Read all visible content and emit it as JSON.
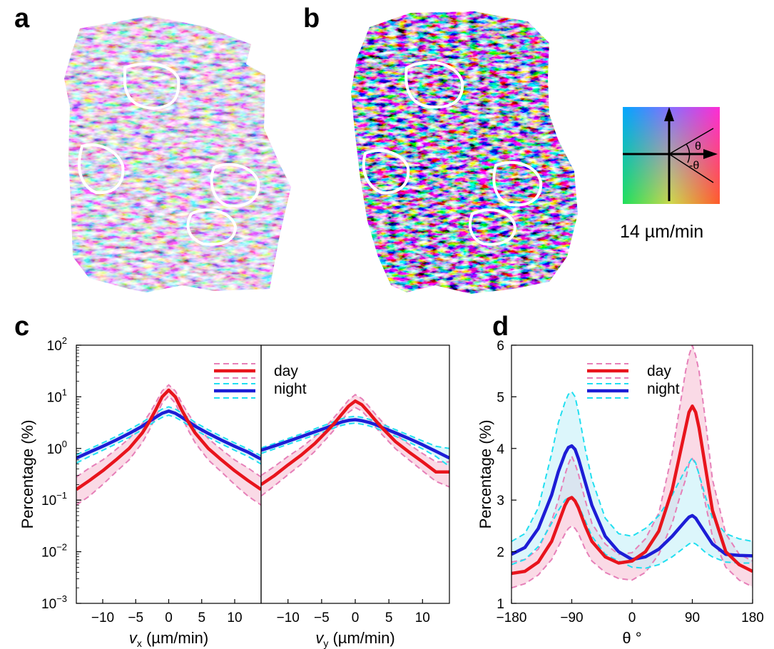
{
  "panels": {
    "a": "a",
    "b": "b",
    "c": "c",
    "d": "d"
  },
  "colorwheel": {
    "theta": "θ",
    "neg_theta": "-θ",
    "scale_label": "14 µm/min"
  },
  "colors": {
    "day": "#e8141c",
    "day_dash": "#e67fb8",
    "day_fill": "#f7c6d8",
    "night": "#1d1dd6",
    "night_dash": "#21dff0",
    "night_fill": "#bfeff7"
  },
  "chart_data": [
    {
      "type": "line",
      "panel": "c-left",
      "yscale": "log",
      "ylabel": "Percentage (%)",
      "xlabel_var": "v",
      "xlabel_sub": "x",
      "xlabel_unit": " (µm/min)",
      "xlim": [
        -14,
        14
      ],
      "ylim": [
        0.001,
        100
      ],
      "xticks": [
        -10,
        -5,
        0,
        5,
        10
      ],
      "xtick_labels": [
        "−10",
        "−5",
        "0",
        "5",
        "10"
      ],
      "yticks": [
        0.001,
        0.01,
        0.1,
        1,
        10,
        100
      ],
      "ytick_base": [
        "10",
        "10",
        "10",
        "10",
        "10",
        "10"
      ],
      "ytick_exp": [
        "−3",
        "−2",
        "−1",
        "0",
        "1",
        "2"
      ],
      "legend": [
        "day",
        "night"
      ],
      "legend_position": "top-right",
      "x": [
        -14,
        -12,
        -10,
        -8,
        -6,
        -4,
        -3,
        -2,
        -1,
        0,
        1,
        2,
        3,
        4,
        6,
        8,
        10,
        12,
        14
      ],
      "series": [
        {
          "name": "day",
          "values": [
            0.16,
            0.24,
            0.37,
            0.6,
            1.0,
            2.0,
            3.2,
            5.5,
            10.0,
            13.5,
            10.0,
            5.5,
            3.2,
            2.0,
            1.0,
            0.6,
            0.37,
            0.24,
            0.16
          ],
          "upper": [
            0.28,
            0.42,
            0.6,
            0.95,
            1.55,
            3.0,
            4.6,
            7.5,
            13.0,
            17.0,
            13.0,
            7.5,
            4.6,
            3.0,
            1.55,
            0.95,
            0.6,
            0.42,
            0.28
          ],
          "lower": [
            0.08,
            0.12,
            0.2,
            0.35,
            0.6,
            1.3,
            2.2,
            4.0,
            7.5,
            10.5,
            7.5,
            4.0,
            2.2,
            1.3,
            0.6,
            0.35,
            0.2,
            0.12,
            0.08
          ]
        },
        {
          "name": "night",
          "values": [
            0.65,
            0.85,
            1.1,
            1.45,
            1.95,
            2.7,
            3.3,
            4.0,
            4.8,
            5.3,
            4.8,
            4.0,
            3.3,
            2.7,
            1.95,
            1.45,
            1.1,
            0.85,
            0.62
          ],
          "upper": [
            0.75,
            0.98,
            1.28,
            1.7,
            2.3,
            3.2,
            3.9,
            4.8,
            5.8,
            6.4,
            5.8,
            4.8,
            3.9,
            3.2,
            2.3,
            1.7,
            1.28,
            0.98,
            0.72
          ],
          "lower": [
            0.52,
            0.7,
            0.92,
            1.22,
            1.65,
            2.3,
            2.8,
            3.4,
            4.0,
            4.4,
            4.0,
            3.4,
            2.8,
            2.3,
            1.65,
            1.22,
            0.92,
            0.7,
            0.5
          ]
        }
      ]
    },
    {
      "type": "line",
      "panel": "c-right",
      "yscale": "log",
      "xlabel_var": "v",
      "xlabel_sub": "y",
      "xlabel_unit": " (µm/min)",
      "xlim": [
        -14,
        14
      ],
      "ylim": [
        0.001,
        100
      ],
      "xticks": [
        -10,
        -5,
        0,
        5,
        10
      ],
      "xtick_labels": [
        "−10",
        "−5",
        "0",
        "5",
        "10"
      ],
      "x": [
        -14,
        -12,
        -10,
        -8,
        -6,
        -4,
        -3,
        -2,
        -1,
        0,
        1,
        2,
        3,
        4,
        6,
        8,
        10,
        12,
        14
      ],
      "series": [
        {
          "name": "day",
          "values": [
            0.2,
            0.3,
            0.48,
            0.75,
            1.25,
            2.3,
            3.2,
            4.6,
            6.6,
            8.3,
            7.0,
            5.0,
            3.5,
            2.5,
            1.35,
            0.85,
            0.55,
            0.35,
            0.35
          ],
          "upper": [
            0.3,
            0.45,
            0.7,
            1.05,
            1.7,
            3.0,
            4.2,
            6.0,
            8.6,
            11.0,
            9.2,
            6.6,
            4.6,
            3.3,
            1.85,
            1.2,
            0.8,
            0.55,
            0.55
          ],
          "lower": [
            0.12,
            0.19,
            0.31,
            0.5,
            0.88,
            1.7,
            2.4,
            3.5,
            5.0,
            6.2,
            5.3,
            3.8,
            2.6,
            1.85,
            0.98,
            0.6,
            0.37,
            0.23,
            0.18
          ]
        },
        {
          "name": "night",
          "values": [
            0.92,
            1.12,
            1.38,
            1.7,
            2.1,
            2.6,
            2.95,
            3.25,
            3.5,
            3.6,
            3.45,
            3.2,
            2.9,
            2.55,
            2.0,
            1.55,
            1.18,
            0.88,
            0.65
          ],
          "upper": [
            1.02,
            1.25,
            1.55,
            1.92,
            2.4,
            3.0,
            3.4,
            3.75,
            4.05,
            4.2,
            4.0,
            3.7,
            3.35,
            2.95,
            2.3,
            1.8,
            1.4,
            1.1,
            1.0
          ],
          "lower": [
            0.8,
            0.98,
            1.2,
            1.48,
            1.82,
            2.25,
            2.55,
            2.8,
            3.0,
            3.1,
            2.95,
            2.75,
            2.5,
            2.2,
            1.72,
            1.32,
            0.98,
            0.7,
            0.45
          ]
        }
      ]
    },
    {
      "type": "line",
      "panel": "d",
      "ylabel": "Percentage (%)",
      "xlabel": "θ °",
      "xlim": [
        -180,
        180
      ],
      "ylim": [
        1,
        6
      ],
      "xticks": [
        -180,
        -90,
        0,
        90,
        180
      ],
      "xtick_labels": [
        "−180",
        "−90",
        "0",
        "90",
        "180"
      ],
      "yticks": [
        1,
        2,
        3,
        4,
        5,
        6
      ],
      "ytick_labels": [
        "1",
        "2",
        "3",
        "4",
        "5",
        "6"
      ],
      "legend": [
        "day",
        "night"
      ],
      "legend_position": "top",
      "x": [
        -180,
        -160,
        -140,
        -120,
        -110,
        -100,
        -95,
        -90,
        -85,
        -80,
        -70,
        -60,
        -40,
        -20,
        0,
        20,
        40,
        60,
        70,
        80,
        85,
        90,
        95,
        100,
        110,
        120,
        140,
        160,
        180
      ],
      "series": [
        {
          "name": "day",
          "values": [
            1.58,
            1.62,
            1.8,
            2.2,
            2.55,
            2.9,
            3.02,
            3.05,
            2.98,
            2.85,
            2.5,
            2.2,
            1.9,
            1.78,
            1.82,
            2.0,
            2.4,
            3.2,
            3.8,
            4.4,
            4.7,
            4.82,
            4.7,
            4.4,
            3.6,
            2.8,
            2.0,
            1.75,
            1.62
          ],
          "upper": [
            1.8,
            1.85,
            2.05,
            2.6,
            3.0,
            3.5,
            3.7,
            3.85,
            3.7,
            3.5,
            3.0,
            2.55,
            2.15,
            1.95,
            1.98,
            2.25,
            2.75,
            3.9,
            4.7,
            5.5,
            5.8,
            6.0,
            5.8,
            5.5,
            4.5,
            3.4,
            2.35,
            1.95,
            1.82
          ],
          "lower": [
            1.3,
            1.38,
            1.55,
            1.85,
            2.1,
            2.35,
            2.45,
            2.5,
            2.45,
            2.35,
            2.05,
            1.82,
            1.6,
            1.48,
            1.45,
            1.6,
            1.95,
            2.55,
            3.0,
            3.4,
            3.7,
            3.8,
            3.7,
            3.5,
            2.9,
            2.3,
            1.7,
            1.45,
            1.32
          ]
        },
        {
          "name": "night",
          "values": [
            1.95,
            2.08,
            2.45,
            3.1,
            3.55,
            3.9,
            4.02,
            4.05,
            3.98,
            3.8,
            3.35,
            2.9,
            2.3,
            2.0,
            1.85,
            1.9,
            2.05,
            2.3,
            2.45,
            2.6,
            2.67,
            2.7,
            2.65,
            2.55,
            2.35,
            2.15,
            1.95,
            1.93,
            1.92
          ],
          "upper": [
            2.2,
            2.35,
            2.85,
            3.9,
            4.5,
            4.9,
            5.05,
            5.1,
            5.0,
            4.7,
            4.0,
            3.4,
            2.65,
            2.35,
            2.3,
            2.45,
            2.7,
            3.1,
            3.35,
            3.6,
            3.72,
            3.82,
            3.72,
            3.5,
            3.05,
            2.65,
            2.35,
            2.25,
            2.2
          ],
          "lower": [
            1.75,
            1.85,
            2.1,
            2.55,
            2.8,
            3.0,
            3.05,
            3.05,
            3.0,
            2.9,
            2.6,
            2.3,
            1.95,
            1.82,
            1.7,
            1.68,
            1.75,
            1.9,
            2.0,
            2.1,
            2.15,
            2.18,
            2.15,
            2.1,
            1.98,
            1.9,
            1.8,
            1.78,
            1.78
          ]
        }
      ]
    }
  ]
}
